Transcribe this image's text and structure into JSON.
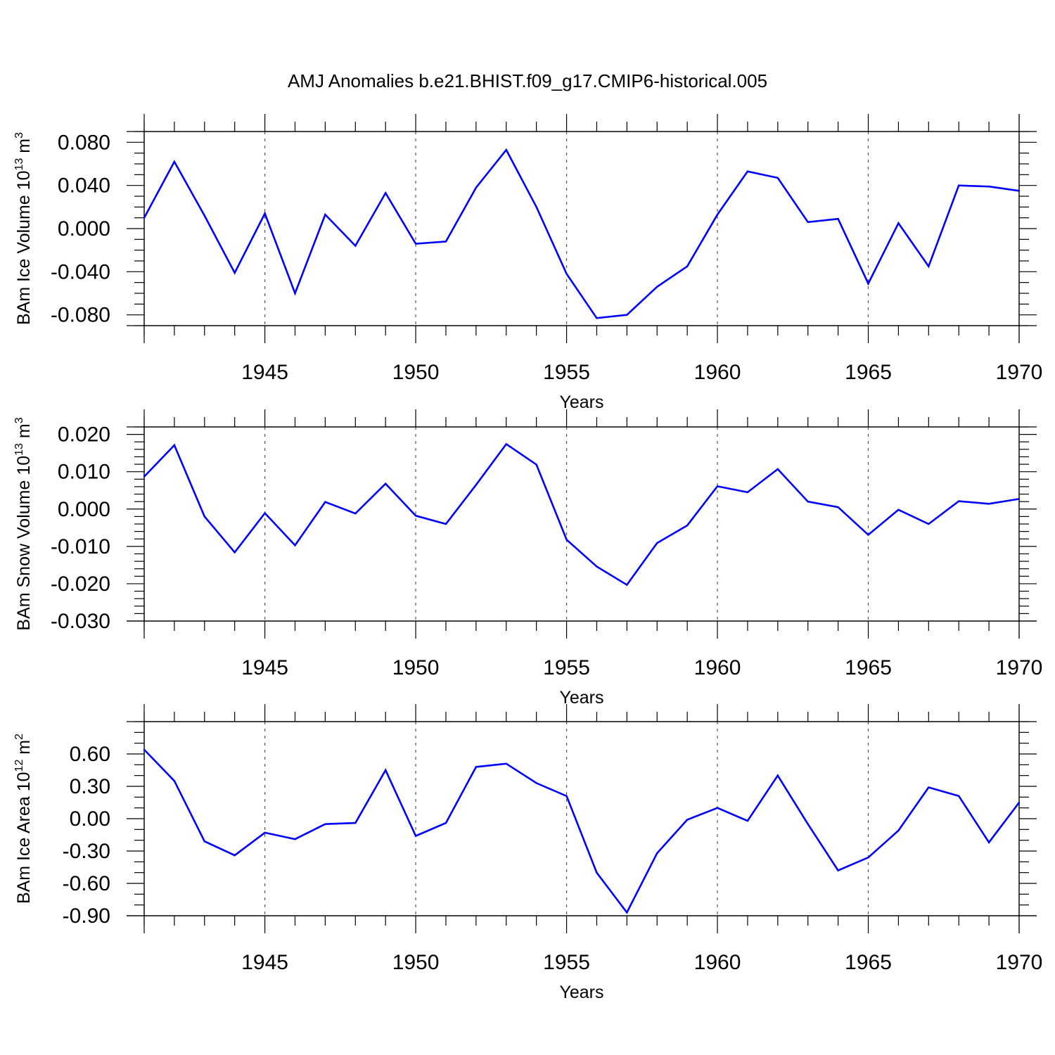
{
  "figure_title": "AMJ Anomalies b.e21.BHIST.f09_g17.CMIP6-historical.005",
  "colors": {
    "line": "#0000ff",
    "axes": "#000000",
    "grid": "#555555",
    "background": "#ffffff"
  },
  "chart_data": [
    {
      "type": "line",
      "name": "ice-volume",
      "ylabel_main": "BAm Ice Volume 10",
      "ylabel_exp": "13",
      "ylabel_unit": " m",
      "ylabel_unit_exp": "3",
      "xlabel": "Years",
      "xlim": [
        1941,
        1970
      ],
      "ylim": [
        -0.09,
        0.09
      ],
      "xticks": [
        1945,
        1950,
        1955,
        1960,
        1965,
        1970
      ],
      "yticks": [
        0.08,
        0.04,
        0.0,
        -0.04,
        -0.08
      ],
      "yticklabels": [
        "0.080",
        "0.040",
        "0.000",
        "-0.040",
        "-0.080"
      ],
      "yminor_step": 0.01,
      "grid": "dashed vertical at major x ticks",
      "series": [
        {
          "name": "BAm Ice Volume",
          "x": [
            1941,
            1942,
            1943,
            1944,
            1945,
            1946,
            1947,
            1948,
            1949,
            1950,
            1951,
            1952,
            1953,
            1954,
            1955,
            1956,
            1957,
            1958,
            1959,
            1960,
            1961,
            1962,
            1963,
            1964,
            1965,
            1966,
            1967,
            1968,
            1969,
            1970
          ],
          "values": [
            0.01,
            0.062,
            0.012,
            -0.041,
            0.014,
            -0.06,
            0.013,
            -0.016,
            0.033,
            -0.014,
            -0.012,
            0.038,
            0.073,
            0.02,
            -0.042,
            -0.083,
            -0.08,
            -0.054,
            -0.035,
            0.013,
            0.053,
            0.047,
            0.006,
            0.009,
            -0.051,
            0.005,
            -0.035,
            0.04,
            0.039,
            0.035
          ]
        }
      ]
    },
    {
      "type": "line",
      "name": "snow-volume",
      "ylabel_main": "BAm Snow Volume 10",
      "ylabel_exp": "13",
      "ylabel_unit": " m",
      "ylabel_unit_exp": "3",
      "xlabel": "Years",
      "xlim": [
        1941,
        1970
      ],
      "ylim": [
        -0.03,
        0.022
      ],
      "xticks": [
        1945,
        1950,
        1955,
        1960,
        1965,
        1970
      ],
      "yticks": [
        0.02,
        0.01,
        0.0,
        -0.01,
        -0.02,
        -0.03
      ],
      "yticklabels": [
        "0.020",
        "0.010",
        "0.000",
        "-0.010",
        "-0.020",
        "-0.030"
      ],
      "yminor_step": 0.002,
      "grid": "dashed vertical at major x ticks",
      "series": [
        {
          "name": "BAm Snow Volume",
          "x": [
            1941,
            1942,
            1943,
            1944,
            1945,
            1946,
            1947,
            1948,
            1949,
            1950,
            1951,
            1952,
            1953,
            1954,
            1955,
            1956,
            1957,
            1958,
            1959,
            1960,
            1961,
            1962,
            1963,
            1964,
            1965,
            1966,
            1967,
            1968,
            1969,
            1970
          ],
          "values": [
            0.0087,
            0.0171,
            -0.002,
            -0.0116,
            -0.0011,
            -0.0097,
            0.0019,
            -0.0012,
            0.0068,
            -0.0018,
            -0.004,
            0.0065,
            0.0174,
            0.0119,
            -0.0082,
            -0.0154,
            -0.0203,
            -0.0091,
            -0.0044,
            0.0061,
            0.0045,
            0.0107,
            0.002,
            0.0005,
            -0.0069,
            -0.0002,
            -0.004,
            0.0021,
            0.0014,
            0.0027
          ]
        }
      ]
    },
    {
      "type": "line",
      "name": "ice-area",
      "ylabel_main": "BAm Ice Area 10",
      "ylabel_exp": "12",
      "ylabel_unit": " m",
      "ylabel_unit_exp": "2",
      "xlabel": "Years",
      "xlim": [
        1941,
        1970
      ],
      "ylim": [
        -0.9,
        0.9
      ],
      "xticks": [
        1945,
        1950,
        1955,
        1960,
        1965,
        1970
      ],
      "yticks": [
        0.6,
        0.3,
        0.0,
        -0.3,
        -0.6,
        -0.9
      ],
      "yticklabels": [
        "0.60",
        "0.30",
        "0.00",
        "-0.30",
        "-0.60",
        "-0.90"
      ],
      "yminor_step": 0.1,
      "grid": "dashed vertical at major x ticks",
      "series": [
        {
          "name": "BAm Ice Area",
          "x": [
            1941,
            1942,
            1943,
            1944,
            1945,
            1946,
            1947,
            1948,
            1949,
            1950,
            1951,
            1952,
            1953,
            1954,
            1955,
            1956,
            1957,
            1958,
            1959,
            1960,
            1961,
            1962,
            1963,
            1964,
            1965,
            1966,
            1967,
            1968,
            1969,
            1970
          ],
          "values": [
            0.64,
            0.35,
            -0.21,
            -0.34,
            -0.13,
            -0.19,
            -0.05,
            -0.04,
            0.45,
            -0.16,
            -0.04,
            0.48,
            0.51,
            0.33,
            0.21,
            -0.5,
            -0.87,
            -0.32,
            -0.01,
            0.1,
            -0.02,
            0.4,
            -0.05,
            -0.48,
            -0.36,
            -0.11,
            0.29,
            0.21,
            -0.22,
            0.15
          ]
        }
      ]
    }
  ]
}
